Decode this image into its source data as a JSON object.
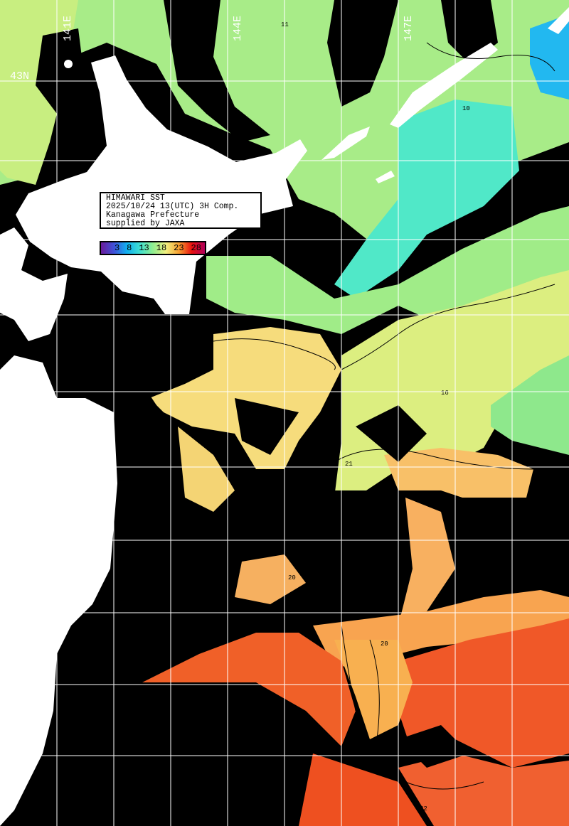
{
  "info_box": {
    "line1": "HIMAWARI SST",
    "line2": "2025/10/24 13(UTC) 3H Comp.",
    "line3": "Kanagawa Prefecture",
    "line4": "supplied by JAXA"
  },
  "legend": {
    "ticks": [
      "3",
      "8",
      "13",
      "18",
      "23",
      "28"
    ],
    "colors": [
      "#6a1b9a",
      "#3f51d8",
      "#10b0f0",
      "#40e0d0",
      "#90ee90",
      "#f0f080",
      "#f8a030",
      "#e81010",
      "#b0005a"
    ]
  },
  "grid_labels": {
    "lon": [
      "141E",
      "144E",
      "147E"
    ],
    "lat": [
      "43N"
    ]
  },
  "contour_labels": [
    "11",
    "10",
    "16",
    "20",
    "21",
    "20",
    "22"
  ],
  "colors": {
    "land": "#ffffff",
    "no_data": "#000000",
    "grid": "#ffffff"
  }
}
